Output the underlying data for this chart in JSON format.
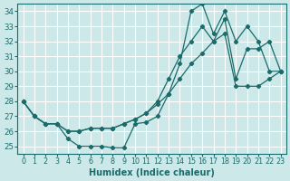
{
  "xlabel": "Humidex (Indice chaleur)",
  "bg_color": "#cce8e8",
  "line_color": "#1a6b6b",
  "grid_color": "#ffffff",
  "xlim": [
    -0.5,
    23.5
  ],
  "ylim": [
    24.5,
    34.5
  ],
  "yticks": [
    25,
    26,
    27,
    28,
    29,
    30,
    31,
    32,
    33,
    34
  ],
  "xticks": [
    0,
    1,
    2,
    3,
    4,
    5,
    6,
    7,
    8,
    9,
    10,
    11,
    12,
    13,
    14,
    15,
    16,
    17,
    18,
    19,
    20,
    21,
    22,
    23
  ],
  "line_spiky_x": [
    0,
    1,
    2,
    3,
    4,
    5,
    6,
    7,
    8,
    9,
    10,
    11,
    12,
    13,
    14,
    15,
    16,
    17,
    18,
    19,
    20,
    21,
    22,
    23
  ],
  "line_spiky_y": [
    28.0,
    27.0,
    26.5,
    26.5,
    25.5,
    25.0,
    25.0,
    25.0,
    24.9,
    24.9,
    26.5,
    26.6,
    27.0,
    28.5,
    30.5,
    34.0,
    34.5,
    32.5,
    34.0,
    32.0,
    33.0,
    32.0,
    30.0,
    30.0
  ],
  "line_mid_x": [
    0,
    1,
    2,
    3,
    4,
    5,
    6,
    7,
    8,
    9,
    10,
    11,
    12,
    13,
    14,
    15,
    16,
    17,
    18,
    19,
    20,
    21,
    22,
    23
  ],
  "line_mid_y": [
    28.0,
    27.0,
    26.5,
    26.5,
    26.0,
    26.0,
    26.2,
    26.2,
    26.2,
    26.5,
    26.8,
    27.2,
    28.0,
    29.5,
    31.0,
    32.0,
    33.0,
    32.0,
    33.5,
    29.5,
    31.5,
    31.5,
    32.0,
    30.0
  ],
  "line_diag_x": [
    0,
    1,
    2,
    3,
    4,
    5,
    6,
    7,
    8,
    9,
    10,
    11,
    12,
    13,
    14,
    15,
    16,
    17,
    18,
    19,
    20,
    21,
    22,
    23
  ],
  "line_diag_y": [
    28.0,
    27.0,
    26.5,
    26.5,
    26.0,
    26.0,
    26.2,
    26.2,
    26.2,
    26.5,
    26.8,
    27.2,
    27.8,
    28.5,
    29.5,
    30.5,
    31.2,
    32.0,
    32.5,
    29.0,
    29.0,
    29.0,
    29.5,
    30.0
  ]
}
